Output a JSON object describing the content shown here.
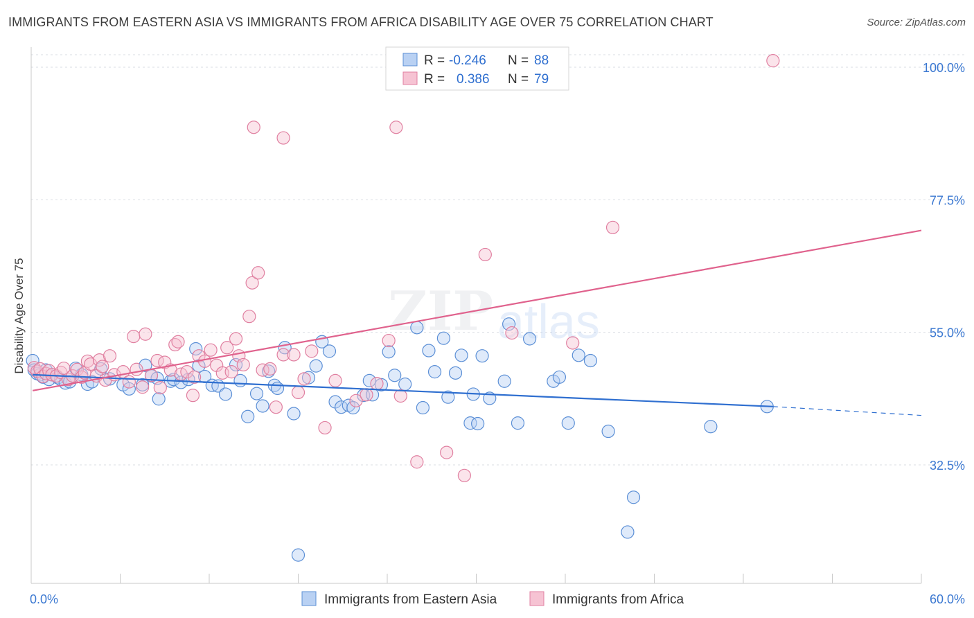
{
  "header": {
    "title": "IMMIGRANTS FROM EASTERN ASIA VS IMMIGRANTS FROM AFRICA DISABILITY AGE OVER 75 CORRELATION CHART",
    "source": "Source: ZipAtlas.com"
  },
  "watermark": {
    "part1": "ZIP",
    "part2": "atlas"
  },
  "legend_box": {
    "rows": [
      {
        "r_label": "R =",
        "r_value": "-0.246",
        "n_label": "N =",
        "n_value": "88"
      },
      {
        "r_label": "R =",
        "r_value": "0.386",
        "n_label": "N =",
        "n_value": "79"
      }
    ]
  },
  "chart_data": {
    "type": "scatter",
    "title": "IMMIGRANTS FROM EASTERN ASIA VS IMMIGRANTS FROM AFRICA DISABILITY AGE OVER 75 CORRELATION CHART",
    "xlabel": "",
    "ylabel": "Disability Age Over 75",
    "xlim": [
      0,
      60
    ],
    "ylim": [
      14,
      102
    ],
    "x_tick_labels": [
      "0.0%",
      "60.0%"
    ],
    "y_ticks": [
      32.5,
      55.0,
      77.5,
      100.0
    ],
    "y_tick_labels": [
      "32.5%",
      "55.0%",
      "77.5%",
      "100.0%"
    ],
    "grid": true,
    "legend": [
      "Immigrants from Eastern Asia",
      "Immigrants from Africa"
    ],
    "colors": {
      "blue": "#5b8fd6",
      "blue_fill": "#b9d1f3",
      "pink": "#e07fa0",
      "pink_fill": "#f6c3d3",
      "blue_line": "#2f6fd0",
      "pink_line": "#e0628d"
    },
    "series": [
      {
        "name": "Immigrants from Eastern Asia",
        "r": -0.246,
        "n": 88,
        "trend": {
          "x0": 0.1,
          "y0": 47.8,
          "x1": 50.0,
          "y1": 42.4,
          "dash_to_x": 60.0,
          "dash_to_y": 40.9
        },
        "points": [
          [
            0.1,
            50.2
          ],
          [
            0.2,
            48.6
          ],
          [
            0.4,
            48.0
          ],
          [
            0.6,
            47.8
          ],
          [
            0.8,
            47.4
          ],
          [
            1.0,
            48.6
          ],
          [
            1.2,
            47.0
          ],
          [
            1.4,
            47.8
          ],
          [
            1.8,
            47.3
          ],
          [
            2.0,
            47.0
          ],
          [
            2.3,
            46.4
          ],
          [
            2.6,
            46.6
          ],
          [
            3.0,
            48.9
          ],
          [
            3.4,
            47.8
          ],
          [
            3.8,
            46.2
          ],
          [
            4.1,
            46.6
          ],
          [
            4.7,
            48.8
          ],
          [
            5.3,
            47.1
          ],
          [
            6.2,
            46.1
          ],
          [
            6.6,
            45.4
          ],
          [
            7.5,
            46.1
          ],
          [
            7.7,
            49.4
          ],
          [
            8.1,
            47.6
          ],
          [
            8.5,
            47.2
          ],
          [
            8.6,
            43.7
          ],
          [
            9.4,
            46.7
          ],
          [
            9.6,
            47.0
          ],
          [
            10.1,
            46.5
          ],
          [
            10.6,
            47.0
          ],
          [
            11.1,
            52.2
          ],
          [
            11.3,
            49.3
          ],
          [
            11.7,
            47.5
          ],
          [
            12.2,
            46.0
          ],
          [
            12.6,
            45.9
          ],
          [
            13.1,
            44.5
          ],
          [
            13.8,
            49.5
          ],
          [
            14.1,
            46.8
          ],
          [
            14.6,
            40.7
          ],
          [
            15.2,
            44.6
          ],
          [
            15.6,
            42.5
          ],
          [
            16.0,
            48.4
          ],
          [
            16.4,
            46.0
          ],
          [
            16.6,
            45.5
          ],
          [
            17.1,
            52.4
          ],
          [
            17.7,
            41.2
          ],
          [
            18.7,
            47.3
          ],
          [
            19.2,
            49.3
          ],
          [
            19.6,
            53.4
          ],
          [
            20.1,
            51.8
          ],
          [
            20.5,
            43.2
          ],
          [
            20.9,
            42.3
          ],
          [
            21.4,
            42.6
          ],
          [
            21.7,
            42.2
          ],
          [
            22.4,
            44.3
          ],
          [
            22.8,
            46.8
          ],
          [
            23.0,
            44.4
          ],
          [
            23.6,
            46.1
          ],
          [
            24.1,
            51.7
          ],
          [
            24.5,
            47.7
          ],
          [
            25.2,
            46.2
          ],
          [
            26.0,
            55.8
          ],
          [
            26.4,
            42.2
          ],
          [
            26.8,
            51.9
          ],
          [
            27.2,
            48.3
          ],
          [
            27.8,
            54.0
          ],
          [
            28.1,
            44.0
          ],
          [
            28.6,
            48.1
          ],
          [
            29.0,
            51.1
          ],
          [
            29.6,
            39.6
          ],
          [
            29.8,
            44.5
          ],
          [
            30.1,
            39.5
          ],
          [
            30.4,
            51.0
          ],
          [
            30.9,
            43.8
          ],
          [
            31.9,
            46.7
          ],
          [
            32.2,
            56.4
          ],
          [
            32.8,
            39.6
          ],
          [
            33.6,
            53.9
          ],
          [
            35.2,
            46.7
          ],
          [
            35.6,
            47.4
          ],
          [
            36.2,
            39.6
          ],
          [
            36.9,
            51.1
          ],
          [
            37.7,
            50.2
          ],
          [
            38.9,
            38.2
          ],
          [
            40.6,
            27.0
          ],
          [
            40.2,
            21.1
          ],
          [
            45.8,
            39.0
          ],
          [
            49.6,
            42.4
          ],
          [
            18.0,
            17.2
          ]
        ]
      },
      {
        "name": "Immigrants from Africa",
        "r": 0.386,
        "n": 79,
        "trend": {
          "x0": 0.1,
          "y0": 45.1,
          "x1": 60.0,
          "y1": 72.3
        },
        "points": [
          [
            0.2,
            49.0
          ],
          [
            0.4,
            48.4
          ],
          [
            0.6,
            48.8
          ],
          [
            0.8,
            47.5
          ],
          [
            1.0,
            48.0
          ],
          [
            1.2,
            48.5
          ],
          [
            1.4,
            47.8
          ],
          [
            1.7,
            47.6
          ],
          [
            2.0,
            48.2
          ],
          [
            2.2,
            48.9
          ],
          [
            2.5,
            47.0
          ],
          [
            2.8,
            47.6
          ],
          [
            3.1,
            48.7
          ],
          [
            3.4,
            47.4
          ],
          [
            3.6,
            48.1
          ],
          [
            3.8,
            50.1
          ],
          [
            4.0,
            49.6
          ],
          [
            4.4,
            47.6
          ],
          [
            4.6,
            50.3
          ],
          [
            4.8,
            49.2
          ],
          [
            5.0,
            46.9
          ],
          [
            5.3,
            51.0
          ],
          [
            5.6,
            47.8
          ],
          [
            6.2,
            48.3
          ],
          [
            6.6,
            46.6
          ],
          [
            6.9,
            54.3
          ],
          [
            7.1,
            48.7
          ],
          [
            7.5,
            45.7
          ],
          [
            7.7,
            54.7
          ],
          [
            8.1,
            47.7
          ],
          [
            8.5,
            50.2
          ],
          [
            8.7,
            45.6
          ],
          [
            9.0,
            49.9
          ],
          [
            9.4,
            48.6
          ],
          [
            9.7,
            52.9
          ],
          [
            9.9,
            53.4
          ],
          [
            10.1,
            47.9
          ],
          [
            10.5,
            48.3
          ],
          [
            10.9,
            44.3
          ],
          [
            11.3,
            51.0
          ],
          [
            11.7,
            50.1
          ],
          [
            12.1,
            52.0
          ],
          [
            12.5,
            49.4
          ],
          [
            12.9,
            48.1
          ],
          [
            13.2,
            52.4
          ],
          [
            13.5,
            48.3
          ],
          [
            13.8,
            53.9
          ],
          [
            14.0,
            51.0
          ],
          [
            14.3,
            49.5
          ],
          [
            14.7,
            57.7
          ],
          [
            14.9,
            63.4
          ],
          [
            15.3,
            65.1
          ],
          [
            15.6,
            48.6
          ],
          [
            16.1,
            48.8
          ],
          [
            16.5,
            42.3
          ],
          [
            17.0,
            51.2
          ],
          [
            17.7,
            51.2
          ],
          [
            18.0,
            44.8
          ],
          [
            18.4,
            47.1
          ],
          [
            19.8,
            38.8
          ],
          [
            20.5,
            46.8
          ],
          [
            21.9,
            43.4
          ],
          [
            23.3,
            46.3
          ],
          [
            24.1,
            53.6
          ],
          [
            24.9,
            44.2
          ],
          [
            26.0,
            33.0
          ],
          [
            28.0,
            34.6
          ],
          [
            29.2,
            30.7
          ],
          [
            30.6,
            68.2
          ],
          [
            32.4,
            54.9
          ],
          [
            36.5,
            53.2
          ],
          [
            39.2,
            72.8
          ],
          [
            15.0,
            89.8
          ],
          [
            17.0,
            88.0
          ],
          [
            24.6,
            89.8
          ],
          [
            50.0,
            101.1
          ],
          [
            18.9,
            51.8
          ],
          [
            22.6,
            44.4
          ],
          [
            11.0,
            47.4
          ]
        ]
      }
    ]
  },
  "axes": {
    "y_label": "Disability Age Over 75",
    "x_min_label": "0.0%",
    "x_max_label": "60.0%"
  },
  "bottom_legend": {
    "items": [
      {
        "label": "Immigrants from Eastern Asia"
      },
      {
        "label": "Immigrants from Africa"
      }
    ]
  }
}
